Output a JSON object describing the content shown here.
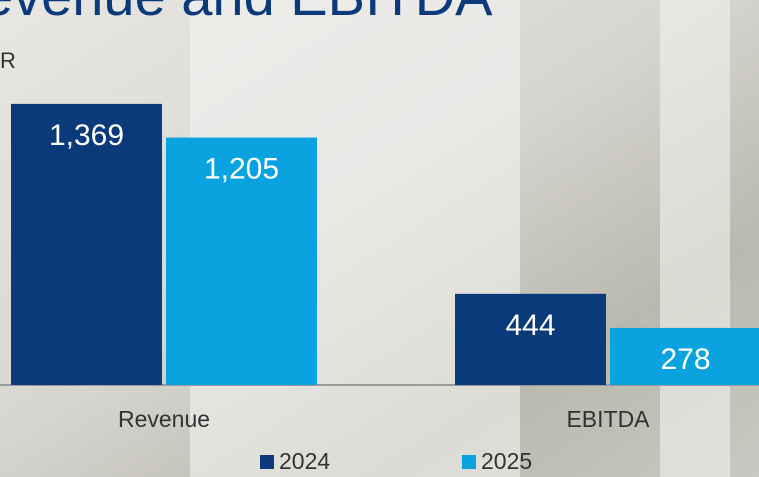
{
  "chart_data": {
    "type": "bar",
    "title": "evenue and EBITDA",
    "unit_label": "R",
    "categories": [
      "Revenue",
      "EBITDA"
    ],
    "series": [
      {
        "name": "2024",
        "color": "#0b3a7a",
        "values": [
          1369,
          444
        ],
        "value_labels": [
          "1,369",
          "444"
        ]
      },
      {
        "name": "2025",
        "color": "#0aa3e0",
        "values": [
          1205,
          278
        ],
        "value_labels": [
          "1,205",
          "278"
        ]
      }
    ],
    "ylim": [
      0,
      1500
    ]
  }
}
